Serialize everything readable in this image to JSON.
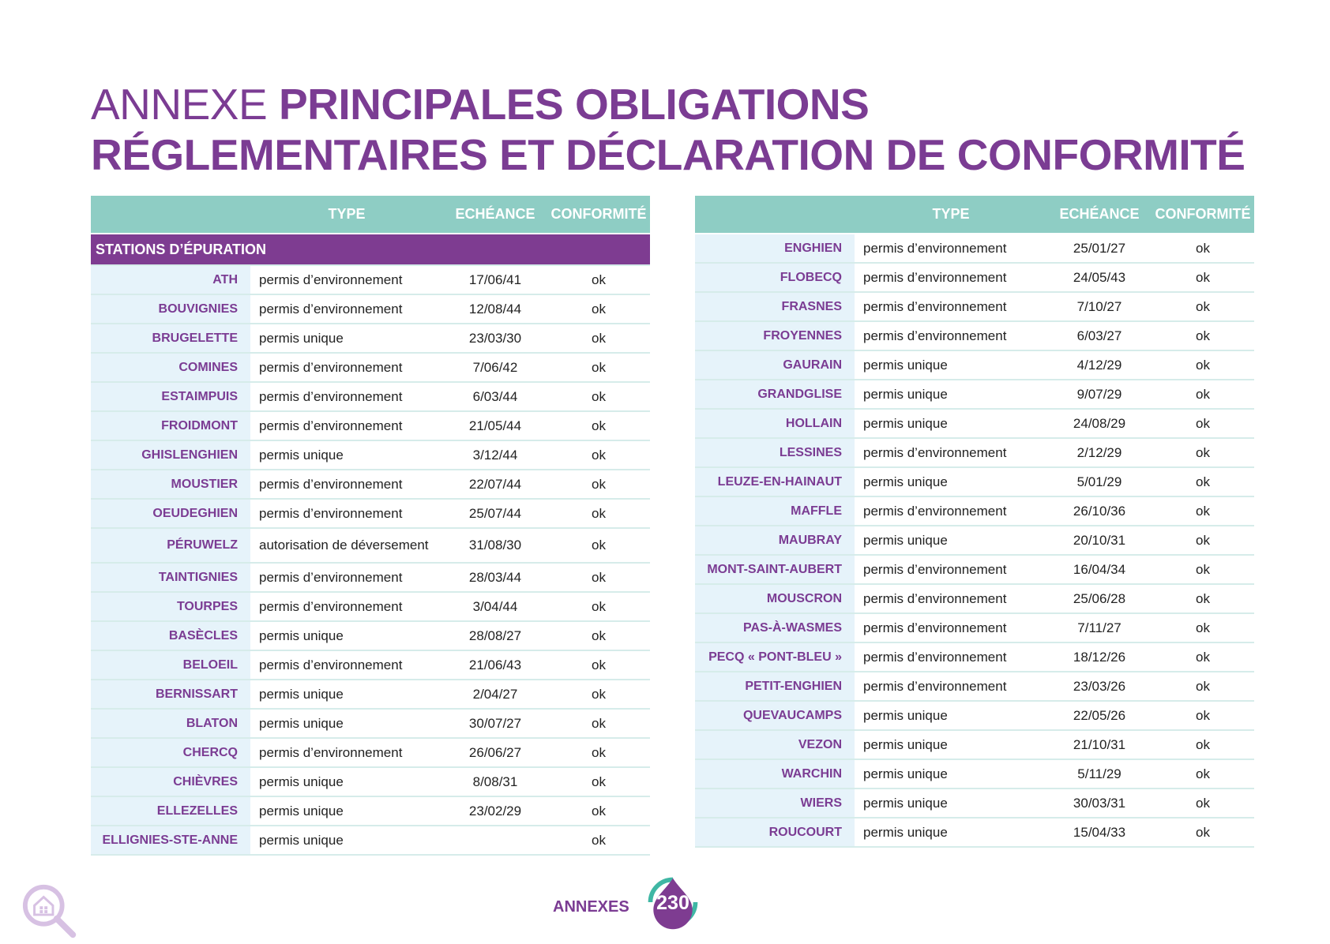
{
  "title": {
    "light": "ANNEXE ",
    "bold": "PRINCIPALES OBLIGATIONS RÉGLEMENTAIRES ET DÉCLARATION DE CONFORMITÉ"
  },
  "headers": {
    "type": "TYPE",
    "echeance": "ECHÉANCE",
    "conformite": "CONFORMITÉ"
  },
  "section_label": "STATIONS D’ÉPURATION",
  "left_rows": [
    {
      "name": "ATH",
      "type": "permis d’environnement",
      "date": "17/06/41",
      "ok": "ok"
    },
    {
      "name": "BOUVIGNIES",
      "type": "permis d’environnement",
      "date": "12/08/44",
      "ok": "ok"
    },
    {
      "name": "BRUGELETTE",
      "type": "permis unique",
      "date": "23/03/30",
      "ok": "ok"
    },
    {
      "name": "COMINES",
      "type": "permis d’environnement",
      "date": "7/06/42",
      "ok": "ok"
    },
    {
      "name": "ESTAIMPUIS",
      "type": "permis d’environnement",
      "date": "6/03/44",
      "ok": "ok"
    },
    {
      "name": "FROIDMONT",
      "type": "permis d’environnement",
      "date": "21/05/44",
      "ok": "ok"
    },
    {
      "name": "GHISLENGHIEN",
      "type": "permis unique",
      "date": "3/12/44",
      "ok": "ok"
    },
    {
      "name": "MOUSTIER",
      "type": "permis d’environnement",
      "date": "22/07/44",
      "ok": "ok"
    },
    {
      "name": "OEUDEGHIEN",
      "type": "permis d’environnement",
      "date": "25/07/44",
      "ok": "ok"
    },
    {
      "name": "PÉRUWELZ",
      "type": "autorisation de déversement",
      "date": "31/08/30",
      "ok": "ok"
    },
    {
      "name": "TAINTIGNIES",
      "type": "permis d’environnement",
      "date": "28/03/44",
      "ok": "ok"
    },
    {
      "name": "TOURPES",
      "type": "permis d’environnement",
      "date": "3/04/44",
      "ok": "ok"
    },
    {
      "name": "BASÈCLES",
      "type": "permis unique",
      "date": "28/08/27",
      "ok": "ok"
    },
    {
      "name": "BELOEIL",
      "type": "permis d’environnement",
      "date": "21/06/43",
      "ok": "ok"
    },
    {
      "name": "BERNISSART",
      "type": "permis unique",
      "date": "2/04/27",
      "ok": "ok"
    },
    {
      "name": "BLATON",
      "type": "permis unique",
      "date": "30/07/27",
      "ok": "ok"
    },
    {
      "name": "CHERCQ",
      "type": "permis d’environnement",
      "date": "26/06/27",
      "ok": "ok"
    },
    {
      "name": "CHIÈVRES",
      "type": "permis unique",
      "date": "8/08/31",
      "ok": "ok"
    },
    {
      "name": "ELLEZELLES",
      "type": "permis unique",
      "date": "23/02/29",
      "ok": "ok"
    },
    {
      "name": "ELLIGNIES-STE-ANNE",
      "type": "permis unique",
      "date": "",
      "ok": "ok"
    }
  ],
  "right_rows": [
    {
      "name": "ENGHIEN",
      "type": "permis d’environnement",
      "date": "25/01/27",
      "ok": "ok"
    },
    {
      "name": "FLOBECQ",
      "type": "permis d’environnement",
      "date": "24/05/43",
      "ok": "ok"
    },
    {
      "name": "FRASNES",
      "type": "permis d’environnement",
      "date": "7/10/27",
      "ok": "ok"
    },
    {
      "name": "FROYENNES",
      "type": "permis d’environnement",
      "date": "6/03/27",
      "ok": "ok"
    },
    {
      "name": "GAURAIN",
      "type": "permis unique",
      "date": "4/12/29",
      "ok": "ok"
    },
    {
      "name": "GRANDGLISE",
      "type": "permis unique",
      "date": "9/07/29",
      "ok": "ok"
    },
    {
      "name": "HOLLAIN",
      "type": "permis unique",
      "date": "24/08/29",
      "ok": "ok"
    },
    {
      "name": "LESSINES",
      "type": "permis d’environnement",
      "date": "2/12/29",
      "ok": "ok"
    },
    {
      "name": "LEUZE-EN-HAINAUT",
      "type": "permis unique",
      "date": "5/01/29",
      "ok": "ok"
    },
    {
      "name": "MAFFLE",
      "type": "permis d’environnement",
      "date": "26/10/36",
      "ok": "ok"
    },
    {
      "name": "MAUBRAY",
      "type": "permis unique",
      "date": "20/10/31",
      "ok": "ok"
    },
    {
      "name": "MONT-SAINT-AUBERT",
      "type": "permis d’environnement",
      "date": "16/04/34",
      "ok": "ok"
    },
    {
      "name": "MOUSCRON",
      "type": "permis d’environnement",
      "date": "25/06/28",
      "ok": "ok"
    },
    {
      "name": "PAS-À-WASMES",
      "type": "permis d’environnement",
      "date": "7/11/27",
      "ok": "ok"
    },
    {
      "name": "PECQ « PONT-BLEU »",
      "type": "permis d’environnement",
      "date": "18/12/26",
      "ok": "ok"
    },
    {
      "name": "PETIT-ENGHIEN",
      "type": "permis d’environnement",
      "date": "23/03/26",
      "ok": "ok"
    },
    {
      "name": "QUEVAUCAMPS",
      "type": "permis unique",
      "date": "22/05/26",
      "ok": "ok"
    },
    {
      "name": "VEZON",
      "type": "permis unique",
      "date": "21/10/31",
      "ok": "ok"
    },
    {
      "name": "WARCHIN",
      "type": "permis unique",
      "date": "5/11/29",
      "ok": "ok"
    },
    {
      "name": "WIERS",
      "type": "permis unique",
      "date": "30/03/31",
      "ok": "ok"
    },
    {
      "name": "ROUCOURT",
      "type": "permis unique",
      "date": "15/04/33",
      "ok": "ok"
    }
  ],
  "footer": {
    "label": "ANNEXES",
    "page_number": "230"
  },
  "colors": {
    "purple": "#7b3c93",
    "teal": "#8ecdc4",
    "name_bg": "#e6f3fa",
    "section_bg": "#7e3c91"
  },
  "icons": {
    "logo": "house-magnifier-icon",
    "badge": "water-drop-recycle-icon"
  }
}
